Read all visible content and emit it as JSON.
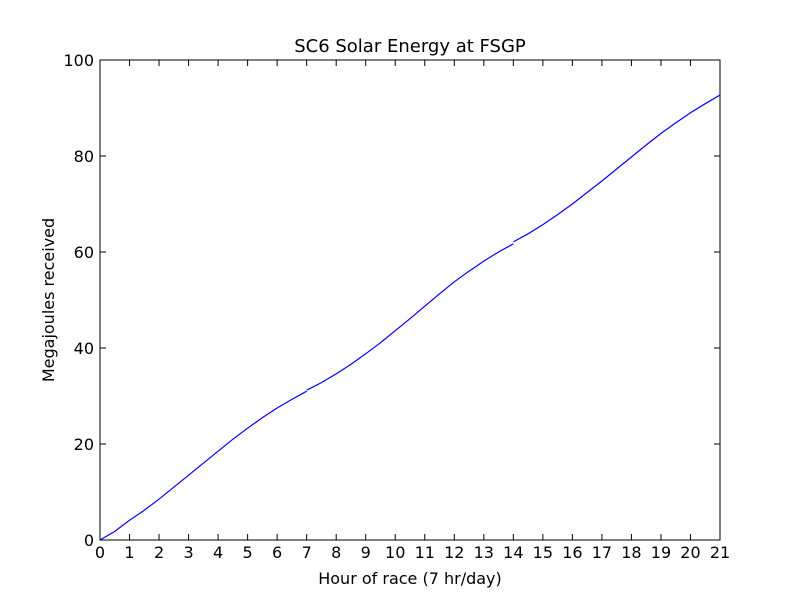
{
  "chart_data": {
    "type": "line",
    "title": "SC6 Solar Energy at FSGP",
    "xlabel": "Hour of race (7 hr/day)",
    "ylabel": "Megajoules received",
    "xlim": [
      0,
      21
    ],
    "ylim": [
      0,
      100
    ],
    "xticks": [
      0,
      1,
      2,
      3,
      4,
      5,
      6,
      7,
      8,
      9,
      10,
      11,
      12,
      13,
      14,
      15,
      16,
      17,
      18,
      19,
      20,
      21
    ],
    "yticks": [
      0,
      20,
      40,
      60,
      80,
      100
    ],
    "grid": false,
    "series_color": "#0000ff",
    "series": [
      {
        "segments": [
          [
            [
              0,
              0
            ],
            [
              0.5,
              1.8
            ],
            [
              1,
              4.1
            ],
            [
              1.5,
              6.2
            ],
            [
              2,
              8.5
            ],
            [
              2.5,
              11
            ],
            [
              3,
              13.5
            ],
            [
              3.5,
              16
            ],
            [
              4,
              18.5
            ],
            [
              4.5,
              21
            ],
            [
              5,
              23.3
            ],
            [
              5.5,
              25.5
            ],
            [
              6,
              27.5
            ],
            [
              6.5,
              29.3
            ],
            [
              7,
              31
            ]
          ],
          [
            [
              7,
              31.2
            ],
            [
              7.5,
              32.8
            ],
            [
              8,
              34.6
            ],
            [
              8.5,
              36.6
            ],
            [
              9,
              38.8
            ],
            [
              9.5,
              41.1
            ],
            [
              10,
              43.6
            ],
            [
              10.5,
              46.1
            ],
            [
              11,
              48.7
            ],
            [
              11.5,
              51.3
            ],
            [
              12,
              53.8
            ],
            [
              12.5,
              56
            ],
            [
              13,
              58.1
            ],
            [
              13.5,
              60
            ],
            [
              14,
              61.7
            ]
          ],
          [
            [
              14,
              62.1
            ],
            [
              14.5,
              63.8
            ],
            [
              15,
              65.7
            ],
            [
              15.5,
              67.8
            ],
            [
              16,
              70
            ],
            [
              16.5,
              72.4
            ],
            [
              17,
              74.8
            ],
            [
              17.5,
              77.3
            ],
            [
              18,
              79.8
            ],
            [
              18.5,
              82.3
            ],
            [
              19,
              84.7
            ],
            [
              19.5,
              86.9
            ],
            [
              20,
              89
            ],
            [
              20.5,
              90.9
            ],
            [
              21,
              92.7
            ]
          ]
        ]
      }
    ]
  }
}
